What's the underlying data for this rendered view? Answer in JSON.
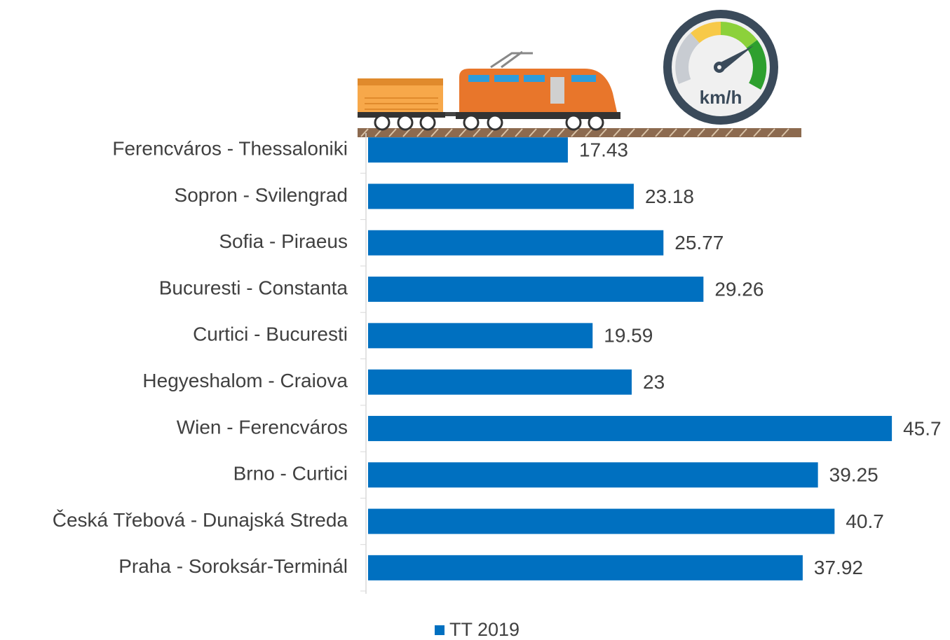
{
  "chart_data": {
    "type": "barh",
    "gauge_label": "km/h",
    "categories": [
      "Ferencváros - Thessaloniki",
      "Sopron - Svilengrad",
      "Sofia - Piraeus",
      "Bucuresti - Constanta",
      "Curtici - Bucuresti",
      "Hegyeshalom - Craiova",
      "Wien - Ferencváros",
      "Brno - Curtici",
      "Česká Třebová - Dunajská Streda",
      "Praha - Soroksár-Terminál"
    ],
    "series": [
      {
        "name": "TT 2019",
        "color": "#0070c0",
        "values": [
          17.43,
          23.18,
          25.77,
          29.26,
          19.59,
          23,
          45.7,
          39.25,
          40.7,
          37.92
        ]
      }
    ],
    "xlim": [
      0,
      46
    ]
  }
}
